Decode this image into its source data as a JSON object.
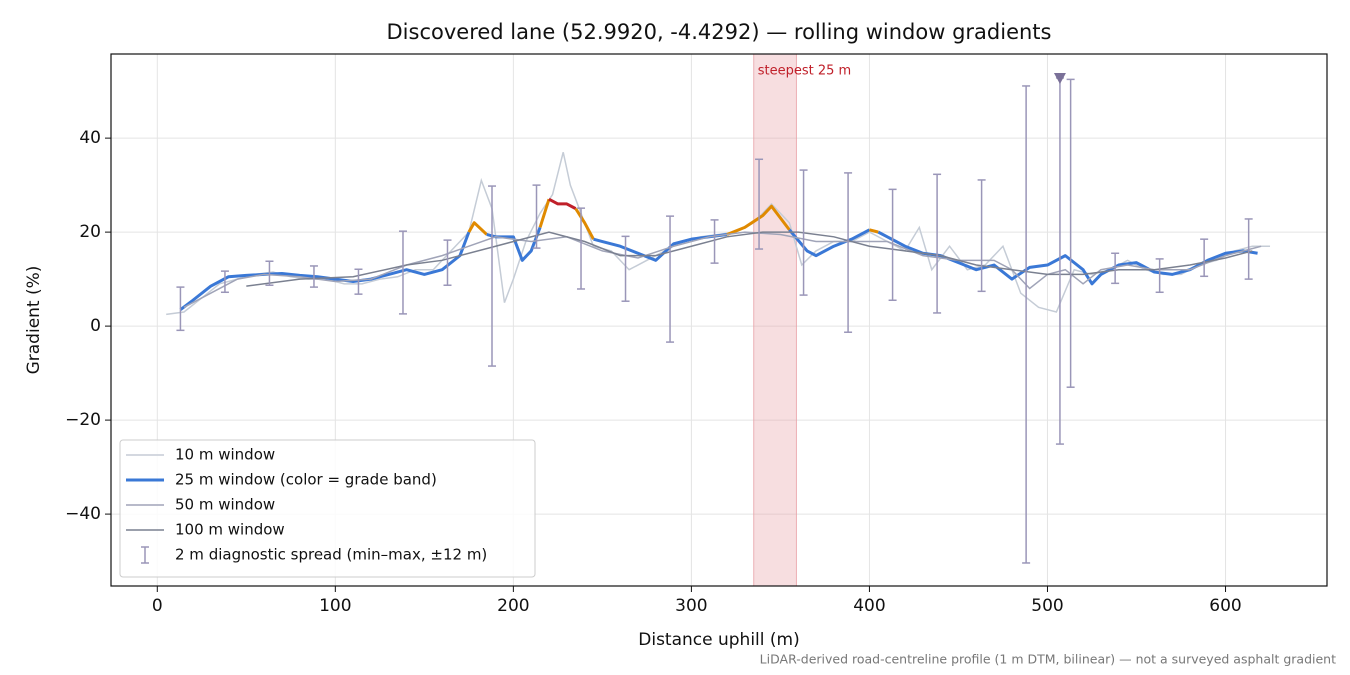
{
  "chart_data": {
    "type": "line",
    "title": "Discovered lane (52.9920, -4.4292) — rolling window gradients",
    "xlabel": "Distance uphill (m)",
    "ylabel": "Gradient (%)",
    "footnote": "LiDAR-derived road-centreline profile (1 m DTM, bilinear) — not a surveyed asphalt gradient",
    "xlim": [
      -26,
      657
    ],
    "ylim": [
      -55.3,
      57.9
    ],
    "xticks": [
      0,
      100,
      200,
      300,
      400,
      500,
      600
    ],
    "yticks": [
      {
        "value": -40,
        "label": "−40"
      },
      {
        "value": -20,
        "label": "−20"
      },
      0,
      20,
      40
    ],
    "grid": true,
    "legend": "lower left",
    "highlight": {
      "label": "steepest 25 m",
      "x": [
        335,
        359
      ],
      "color": "#e8a0a6"
    },
    "series": [
      {
        "name": "10 m window",
        "color": "#c5ccd6",
        "x": [
          5,
          15,
          25,
          35,
          45,
          55,
          65,
          75,
          85,
          95,
          105,
          115,
          125,
          135,
          145,
          155,
          165,
          175,
          182,
          188,
          195,
          200,
          207,
          215,
          222,
          228,
          232,
          238,
          245,
          255,
          265,
          275,
          285,
          295,
          305,
          315,
          325,
          335,
          345,
          355,
          362,
          370,
          380,
          390,
          400,
          410,
          420,
          428,
          435,
          445,
          455,
          465,
          475,
          485,
          495,
          505,
          515,
          525,
          535,
          545,
          555,
          565,
          575,
          585,
          595,
          605,
          615,
          625
        ],
        "values": [
          2.5,
          3,
          6,
          9,
          10,
          11,
          11.5,
          10.5,
          10,
          10,
          9,
          9,
          10,
          10.5,
          12,
          12,
          16,
          20,
          31,
          25,
          5,
          10,
          18,
          24,
          28,
          37,
          30,
          24,
          17,
          16,
          12,
          14,
          16,
          18,
          19,
          19.5,
          20,
          22,
          26,
          22,
          13,
          16,
          18,
          18,
          20,
          18,
          16,
          21,
          12,
          17,
          12,
          13,
          17,
          7,
          4,
          3,
          12,
          11,
          12,
          14,
          12,
          11,
          11,
          13,
          14,
          16,
          17,
          17
        ]
      },
      {
        "name": "25 m window (color = grade band)",
        "color": "#3a78d6",
        "band_thresholds": [
          20,
          25
        ],
        "band_colors": [
          "#3a78d6",
          "#e08a00",
          "#c0202a"
        ],
        "x": [
          13,
          20,
          30,
          40,
          50,
          60,
          70,
          80,
          90,
          100,
          110,
          120,
          130,
          140,
          150,
          160,
          170,
          175,
          178,
          185,
          190,
          200,
          205,
          210,
          215,
          220,
          225,
          230,
          235,
          240,
          245,
          250,
          260,
          270,
          280,
          290,
          300,
          310,
          320,
          330,
          340,
          345,
          350,
          355,
          365,
          370,
          380,
          390,
          400,
          405,
          410,
          420,
          430,
          440,
          450,
          460,
          470,
          480,
          490,
          500,
          510,
          520,
          525,
          530,
          540,
          550,
          560,
          570,
          580,
          590,
          600,
          610,
          618
        ],
        "values": [
          3.5,
          5.5,
          8.5,
          10.5,
          10.8,
          11,
          11.2,
          10.8,
          10.5,
          10,
          9.5,
          10,
          11,
          12,
          11,
          12,
          15,
          20,
          22,
          19.5,
          19,
          19,
          14,
          16,
          21,
          27,
          26,
          26,
          25,
          22,
          18.5,
          18,
          17,
          15.5,
          14,
          17.5,
          18.5,
          19,
          19.5,
          21,
          23.5,
          25.5,
          23,
          20.5,
          16,
          15,
          17,
          18.5,
          20.5,
          20,
          19,
          17,
          15.5,
          15,
          13.5,
          12,
          13,
          10,
          12.5,
          13,
          15,
          12,
          9,
          11,
          13,
          13.5,
          11.5,
          11,
          12,
          14,
          15.5,
          16,
          15.5
        ]
      },
      {
        "name": "50 m window",
        "color": "#a0a4b8",
        "x": [
          15,
          30,
          45,
          60,
          80,
          100,
          120,
          140,
          160,
          175,
          190,
          210,
          230,
          250,
          270,
          290,
          310,
          330,
          350,
          370,
          390,
          410,
          430,
          450,
          470,
          480,
          490,
          500,
          510,
          520,
          530,
          545,
          560,
          580,
          600,
          620
        ],
        "values": [
          4,
          7,
          10,
          11,
          10.5,
          9.5,
          10,
          13,
          15,
          17,
          19,
          18,
          19,
          16,
          14.5,
          17,
          19,
          20,
          19.5,
          18,
          18,
          18,
          15,
          14,
          14,
          12,
          8,
          11,
          12,
          9,
          12,
          13,
          12,
          12,
          15,
          17
        ]
      },
      {
        "name": "100 m window",
        "color": "#7a8090",
        "x": [
          50,
          80,
          110,
          140,
          160,
          190,
          220,
          240,
          260,
          280,
          300,
          320,
          340,
          360,
          380,
          400,
          420,
          440,
          460,
          480,
          500,
          520,
          540,
          560,
          580,
          600,
          615
        ],
        "values": [
          8.5,
          10,
          10.5,
          13,
          14,
          17,
          20,
          18,
          15,
          15,
          17,
          19,
          20,
          20,
          19,
          17,
          16,
          15,
          13,
          12,
          11,
          11,
          12,
          12,
          13,
          14.5,
          16
        ]
      },
      {
        "name": "2 m diagnostic spread (min–max, ±12 m)",
        "color": "#9a96b8",
        "kind": "errorbar",
        "x": [
          13,
          38,
          63,
          88,
          113,
          138,
          163,
          188,
          213,
          238,
          263,
          288,
          313,
          338,
          363,
          388,
          413,
          438,
          463,
          488,
          507,
          513,
          538,
          563,
          588,
          613
        ],
        "low": [
          -0.9,
          7.2,
          8.7,
          8.3,
          6.8,
          2.6,
          8.7,
          -8.5,
          16.6,
          7.9,
          5.3,
          -3.4,
          13.4,
          16.4,
          6.6,
          -1.3,
          5.5,
          2.8,
          7.4,
          -50.4,
          -25.1,
          -13,
          9.1,
          7.2,
          10.6,
          10
        ],
        "high": [
          8.3,
          11.7,
          13.8,
          12.8,
          12.1,
          20.2,
          18.3,
          29.8,
          30,
          25.1,
          19.1,
          23.4,
          22.6,
          35.5,
          33.2,
          32.6,
          29.1,
          32.3,
          31.1,
          51.1,
          52.8,
          52.5,
          15.5,
          14.3,
          18.5,
          22.8
        ]
      }
    ],
    "markers": [
      {
        "x": 507,
        "y": 52.8,
        "color": "#7a7098"
      }
    ]
  }
}
